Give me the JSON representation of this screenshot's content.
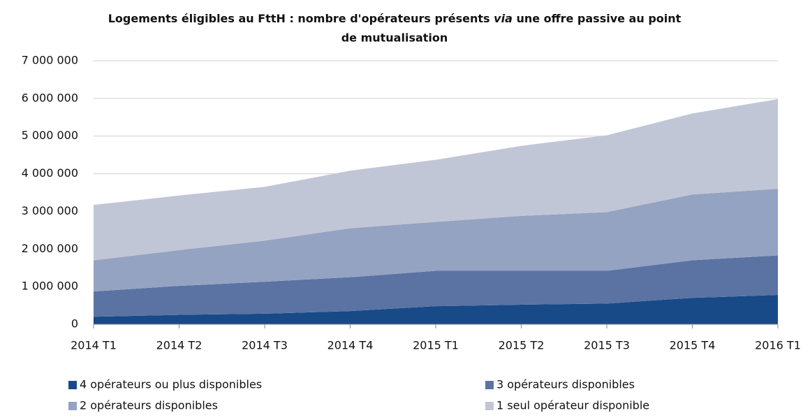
{
  "chart_data": {
    "type": "stacked_area",
    "title": [
      "Logements éligibles au FttH : nombre d'opérateurs présents",
      "via",
      "une offre passive au point",
      "de mutualisation"
    ],
    "categories": [
      "2014 T1",
      "2014 T2",
      "2014 T3",
      "2014 T4",
      "2015 T1",
      "2015 T2",
      "2015 T3",
      "2015 T4",
      "2016 T1"
    ],
    "series": [
      {
        "name": "4 opérateurs ou plus disponibles",
        "color": "#174a87",
        "values": [
          200000,
          250000,
          280000,
          350000,
          480000,
          520000,
          550000,
          700000,
          780000
        ]
      },
      {
        "name": "3 opérateurs disponibles",
        "color": "#5a73a3",
        "values": [
          670000,
          770000,
          850000,
          900000,
          940000,
          900000,
          870000,
          1000000,
          1050000
        ]
      },
      {
        "name": "2 opérateurs disponibles",
        "color": "#94a3c1",
        "values": [
          830000,
          950000,
          1090000,
          1300000,
          1300000,
          1460000,
          1560000,
          1750000,
          1770000
        ]
      },
      {
        "name": "1 seul opérateur disponible",
        "color": "#c0c6d6",
        "values": [
          1470000,
          1450000,
          1430000,
          1530000,
          1650000,
          1860000,
          2040000,
          2150000,
          2380000
        ]
      }
    ],
    "ylim": [
      0,
      7000000
    ],
    "yticks": [
      0,
      {
        "value": 1000000,
        "label": "1 000 000"
      },
      {
        "value": 2000000,
        "label": "2 000 000"
      },
      {
        "value": 3000000,
        "label": "3 000 000"
      },
      {
        "value": 4000000,
        "label": "4 000 000"
      },
      {
        "value": 5000000,
        "label": "5 000 000"
      },
      {
        "value": 6000000,
        "label": "6 000 000"
      },
      {
        "value": 7000000,
        "label": "7 000 000"
      }
    ],
    "grid": true
  }
}
